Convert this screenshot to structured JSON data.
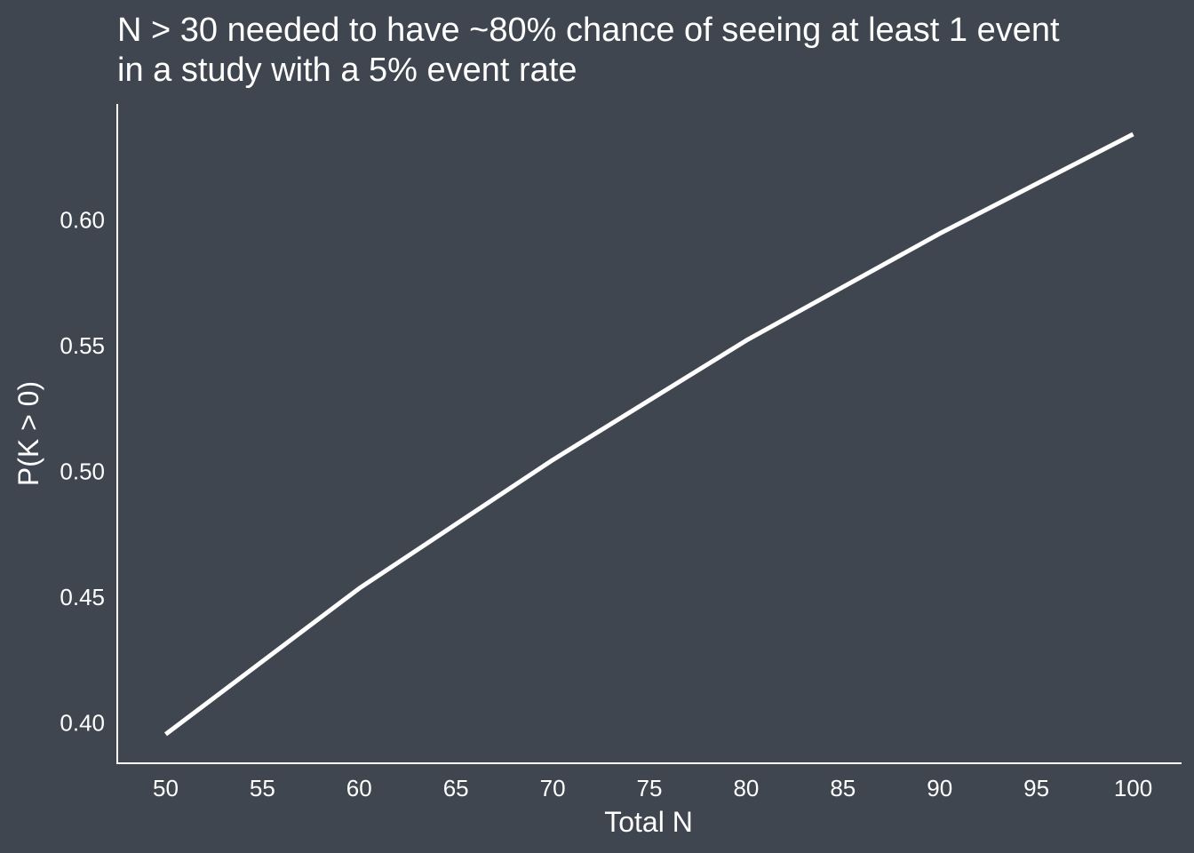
{
  "chart_data": {
    "type": "line",
    "title_lines": [
      "N > 30 needed to have ~80% chance of seeing at least 1 event",
      "in a study with a 5% event rate"
    ],
    "xlabel": "Total N",
    "ylabel": "P(K > 0)",
    "xlim": [
      47.5,
      102.5
    ],
    "ylim": [
      0.384,
      0.646
    ],
    "xticks": [
      50,
      55,
      60,
      65,
      70,
      75,
      80,
      85,
      90,
      95,
      100
    ],
    "yticks": [
      0.4,
      0.45,
      0.5,
      0.55,
      0.6
    ],
    "ytick_labels": [
      "0.40",
      "0.45",
      "0.50",
      "0.55",
      "0.60"
    ],
    "grid": false,
    "colors": {
      "background": "#3f4650",
      "line": "#ffffff",
      "text": "#ffffff"
    },
    "series": [
      {
        "x": [
          50,
          60,
          70,
          80,
          90,
          100
        ],
        "y": [
          0.3955,
          0.4535,
          0.5045,
          0.552,
          0.5945,
          0.634
        ]
      }
    ]
  }
}
